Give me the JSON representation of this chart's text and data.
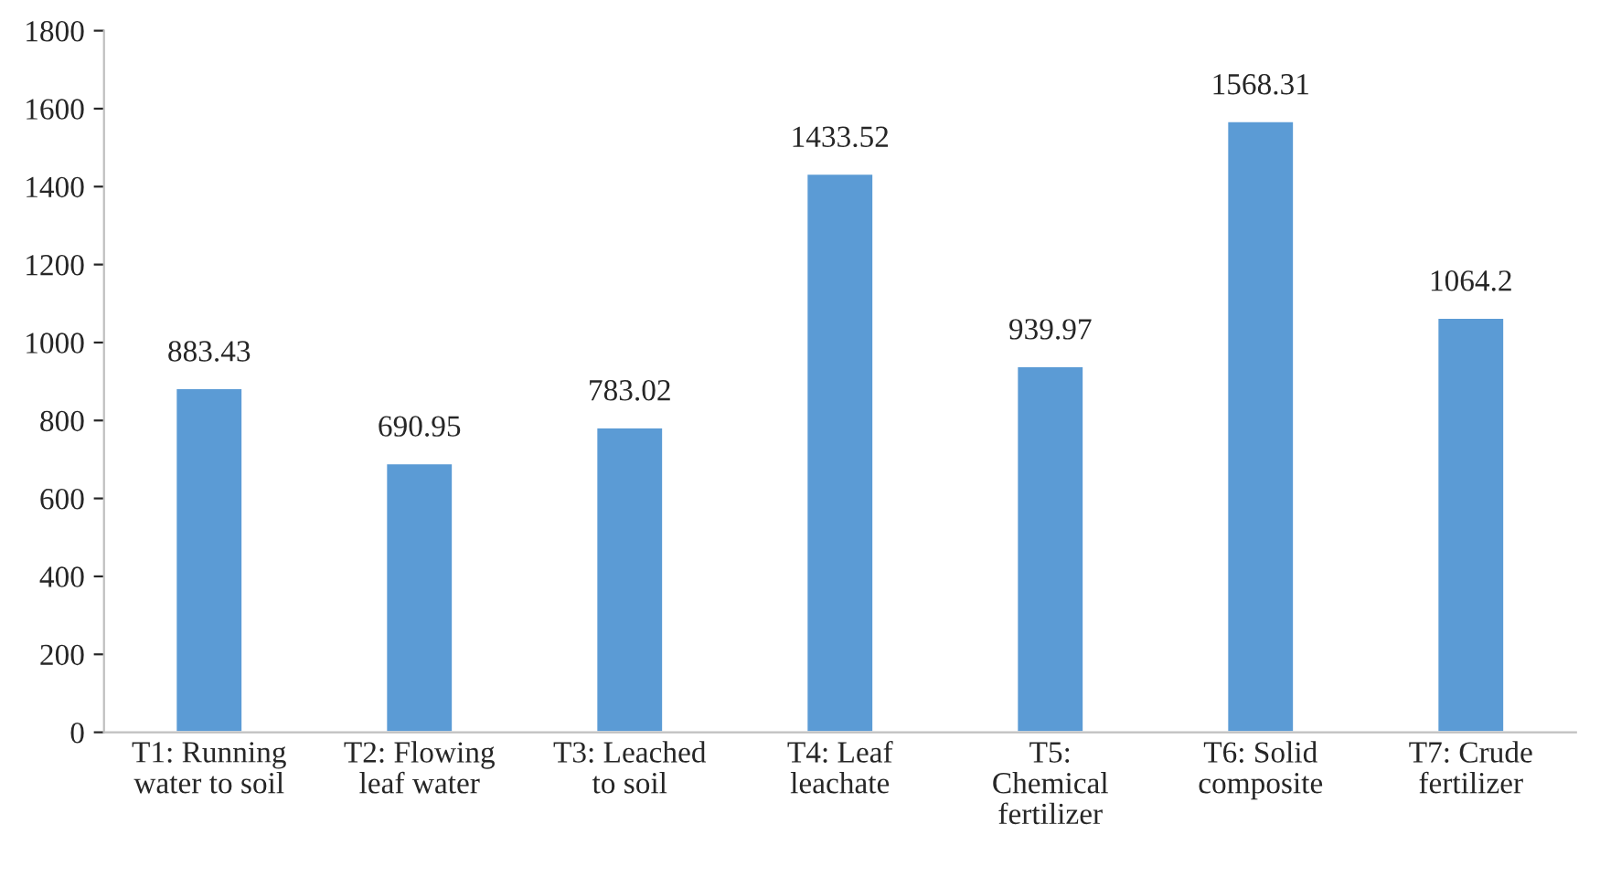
{
  "chart_data": {
    "type": "bar",
    "categories": [
      "T1: Running\nwater to soil",
      "T2: Flowing\nleaf water",
      "T3: Leached\nto soil",
      "T4: Leaf\nleachate",
      "T5:\nChemical\nfertilizer",
      "T6: Solid\ncomposite",
      "T7: Crude\nfertilizer"
    ],
    "values": [
      883.43,
      690.95,
      783.02,
      1433.52,
      939.97,
      1568.31,
      1064.2
    ],
    "color": "#5b9bd5",
    "ylim": [
      0,
      1800
    ],
    "yticks": [
      0,
      200,
      400,
      600,
      800,
      1000,
      1200,
      1400,
      1600,
      1800
    ],
    "data_labels": true,
    "grid": false
  }
}
